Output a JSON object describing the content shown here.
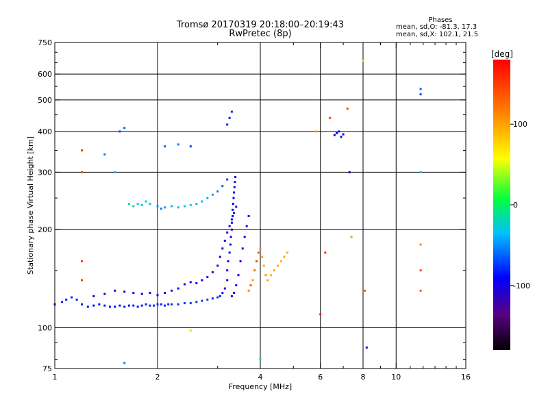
{
  "chart_data": {
    "type": "scatter",
    "title": "Tromsø 20170319 20:18:00–20:19:43",
    "subtitle": "RwPretec (8p)",
    "xlabel": "Frequency [MHz]",
    "ylabel": "Stationary phase Virtual Height [km]",
    "x_scale": "log",
    "y_scale": "log",
    "xlim": [
      1,
      16
    ],
    "ylim": [
      75,
      750
    ],
    "x_ticks": [
      1,
      2,
      4,
      6,
      8,
      10,
      16
    ],
    "y_ticks": [
      75,
      100,
      200,
      300,
      400,
      500,
      600,
      750
    ],
    "x_grid": [
      2,
      4,
      6,
      8,
      10
    ],
    "y_grid": [
      100,
      200,
      300,
      400,
      500,
      600
    ],
    "x_minor": [
      3,
      5,
      7,
      9,
      11,
      12,
      13,
      14,
      15
    ],
    "y_minor": [
      80,
      90,
      150,
      250,
      350,
      450,
      550,
      650,
      700
    ],
    "grid": true,
    "stats": {
      "title": "Phases",
      "line_o": "mean, sd,O: -81.3, 17.3",
      "line_x": "mean, sd,X: 102.1, 21.5"
    },
    "colorbar": {
      "label": "[deg]",
      "range": [
        -180,
        180
      ],
      "ticks": [
        100,
        0,
        -100
      ],
      "legend_position": "right"
    },
    "series": [
      {
        "values": [
          [
            1.0,
            118,
            -95
          ],
          [
            1.05,
            120,
            -90
          ],
          [
            1.08,
            122,
            -92
          ],
          [
            1.12,
            124,
            -88
          ],
          [
            1.16,
            122,
            -90
          ],
          [
            1.2,
            118,
            -92
          ],
          [
            1.25,
            116,
            -95
          ],
          [
            1.3,
            117,
            -100
          ],
          [
            1.35,
            118,
            -97
          ],
          [
            1.4,
            117,
            -94
          ],
          [
            1.45,
            116,
            -96
          ],
          [
            1.5,
            116,
            -98
          ],
          [
            1.55,
            117,
            -95
          ],
          [
            1.6,
            116,
            -92
          ],
          [
            1.65,
            117,
            -94
          ],
          [
            1.7,
            117,
            -90
          ],
          [
            1.75,
            116,
            -93
          ],
          [
            1.8,
            117,
            -91
          ],
          [
            1.85,
            118,
            -89
          ],
          [
            1.9,
            117,
            -92
          ],
          [
            1.95,
            117,
            -90
          ],
          [
            2.0,
            118,
            -88
          ],
          [
            2.05,
            118,
            -91
          ],
          [
            2.1,
            117,
            -89
          ],
          [
            2.15,
            118,
            -87
          ],
          [
            2.2,
            118,
            -90
          ],
          [
            2.3,
            118,
            -88
          ],
          [
            2.4,
            119,
            -86
          ],
          [
            2.5,
            119,
            -84
          ],
          [
            2.6,
            120,
            -85
          ],
          [
            2.7,
            121,
            -83
          ],
          [
            2.8,
            122,
            -82
          ],
          [
            2.9,
            123,
            -84
          ],
          [
            3.0,
            124,
            -86
          ],
          [
            3.05,
            125,
            -90
          ],
          [
            3.1,
            128,
            -92
          ],
          [
            3.15,
            132,
            -95
          ],
          [
            3.2,
            140,
            -98
          ],
          [
            3.2,
            150,
            -100
          ],
          [
            3.22,
            160,
            -102
          ],
          [
            3.25,
            170,
            -100
          ],
          [
            3.27,
            180,
            -104
          ],
          [
            3.28,
            190,
            -100
          ],
          [
            3.3,
            200,
            -106
          ],
          [
            3.3,
            210,
            -102
          ],
          [
            3.32,
            220,
            -104
          ],
          [
            3.32,
            230,
            -100
          ],
          [
            3.33,
            240,
            -108
          ],
          [
            3.34,
            250,
            -104
          ],
          [
            3.35,
            260,
            -106
          ],
          [
            3.36,
            270,
            -108
          ],
          [
            3.37,
            280,
            -110
          ],
          [
            3.38,
            290,
            -112
          ]
        ]
      },
      {
        "values": [
          [
            1.3,
            125,
            -100
          ],
          [
            1.4,
            127,
            -98
          ],
          [
            1.5,
            130,
            -105
          ],
          [
            1.6,
            129,
            -102
          ],
          [
            1.7,
            128,
            -100
          ],
          [
            1.8,
            127,
            -104
          ],
          [
            1.9,
            128,
            -110
          ],
          [
            2.0,
            126,
            -108
          ],
          [
            2.1,
            128,
            -104
          ],
          [
            2.2,
            130,
            -112
          ],
          [
            2.3,
            132,
            -108
          ],
          [
            2.4,
            136,
            -100
          ],
          [
            2.5,
            138,
            -106
          ],
          [
            2.6,
            137,
            -104
          ],
          [
            2.7,
            140,
            -108
          ],
          [
            2.8,
            143,
            -112
          ],
          [
            2.9,
            148,
            -108
          ],
          [
            3.0,
            155,
            -114
          ],
          [
            3.05,
            165,
            -110
          ],
          [
            3.1,
            175,
            -116
          ],
          [
            3.15,
            185,
            -112
          ],
          [
            3.2,
            196,
            -118
          ],
          [
            3.25,
            205,
            -114
          ],
          [
            3.3,
            215,
            -120
          ],
          [
            3.35,
            225,
            -116
          ],
          [
            3.4,
            235,
            -120
          ]
        ]
      },
      {
        "values": [
          [
            3.3,
            125,
            -110
          ],
          [
            3.35,
            128,
            -108
          ],
          [
            3.4,
            135,
            -112
          ],
          [
            3.45,
            145,
            -106
          ],
          [
            3.5,
            160,
            -110
          ],
          [
            3.55,
            175,
            -114
          ],
          [
            3.6,
            190,
            -108
          ],
          [
            3.65,
            205,
            -112
          ],
          [
            3.7,
            220,
            -106
          ]
        ]
      },
      {
        "values": [
          [
            1.65,
            240,
            -10
          ],
          [
            1.7,
            236,
            -30
          ],
          [
            1.75,
            240,
            -20
          ],
          [
            1.8,
            238,
            -35
          ],
          [
            1.85,
            244,
            -25
          ],
          [
            1.9,
            240,
            -40
          ],
          [
            2.0,
            236,
            -55
          ],
          [
            2.05,
            232,
            -60
          ],
          [
            2.1,
            234,
            -50
          ],
          [
            2.2,
            236,
            -45
          ],
          [
            2.3,
            234,
            -40
          ],
          [
            2.4,
            236,
            -35
          ],
          [
            2.5,
            238,
            -30
          ],
          [
            2.6,
            240,
            -35
          ],
          [
            2.7,
            244,
            -40
          ],
          [
            2.8,
            250,
            -45
          ],
          [
            2.9,
            256,
            -50
          ],
          [
            3.0,
            262,
            -60
          ],
          [
            3.1,
            272,
            -70
          ],
          [
            3.2,
            285,
            -80
          ]
        ]
      },
      {
        "values": [
          [
            3.7,
            130,
            120
          ],
          [
            3.75,
            135,
            140
          ],
          [
            3.8,
            140,
            110
          ],
          [
            3.85,
            150,
            130
          ],
          [
            3.9,
            160,
            150
          ],
          [
            3.95,
            170,
            135
          ],
          [
            4.0,
            175,
            120
          ],
          [
            4.05,
            165,
            105
          ],
          [
            4.1,
            155,
            100
          ],
          [
            4.15,
            145,
            110
          ],
          [
            4.2,
            140,
            100
          ],
          [
            4.3,
            145,
            95
          ],
          [
            4.4,
            150,
            100
          ],
          [
            4.5,
            155,
            98
          ],
          [
            4.6,
            160,
            96
          ],
          [
            4.7,
            165,
            100
          ],
          [
            4.8,
            170,
            94
          ]
        ]
      },
      {
        "values": [
          [
            6.6,
            390,
            -105
          ],
          [
            6.7,
            395,
            -100
          ],
          [
            6.8,
            400,
            -108
          ],
          [
            6.9,
            385,
            -102
          ],
          [
            7.0,
            392,
            -110
          ],
          [
            3.2,
            420,
            -90
          ],
          [
            3.25,
            440,
            -95
          ],
          [
            3.3,
            460,
            -88
          ],
          [
            1.55,
            400,
            -75
          ],
          [
            1.6,
            410,
            -70
          ],
          [
            1.4,
            340,
            -60
          ],
          [
            1.5,
            300,
            -40
          ],
          [
            2.1,
            360,
            -70
          ],
          [
            2.3,
            365,
            -60
          ],
          [
            2.5,
            360,
            -80
          ],
          [
            11.8,
            520,
            -80
          ],
          [
            11.8,
            540,
            -70
          ],
          [
            11.8,
            300,
            -40
          ],
          [
            11.8,
            180,
            120
          ],
          [
            11.8,
            150,
            150
          ],
          [
            11.8,
            130,
            140
          ],
          [
            1.2,
            300,
            150
          ],
          [
            1.2,
            350,
            155
          ],
          [
            1.2,
            160,
            155
          ],
          [
            1.2,
            140,
            150
          ],
          [
            6.0,
            110,
            165
          ],
          [
            6.2,
            170,
            160
          ],
          [
            6.4,
            440,
            150
          ],
          [
            7.2,
            470,
            150
          ],
          [
            7.3,
            300,
            -100
          ],
          [
            5.8,
            400,
            100
          ],
          [
            8.0,
            660,
            80
          ],
          [
            8.1,
            130,
            140
          ],
          [
            4.0,
            80,
            -20
          ],
          [
            2.5,
            98,
            40
          ],
          [
            1.6,
            78,
            -60
          ],
          [
            8.2,
            87,
            -100
          ],
          [
            7.4,
            190,
            110
          ]
        ]
      }
    ]
  }
}
